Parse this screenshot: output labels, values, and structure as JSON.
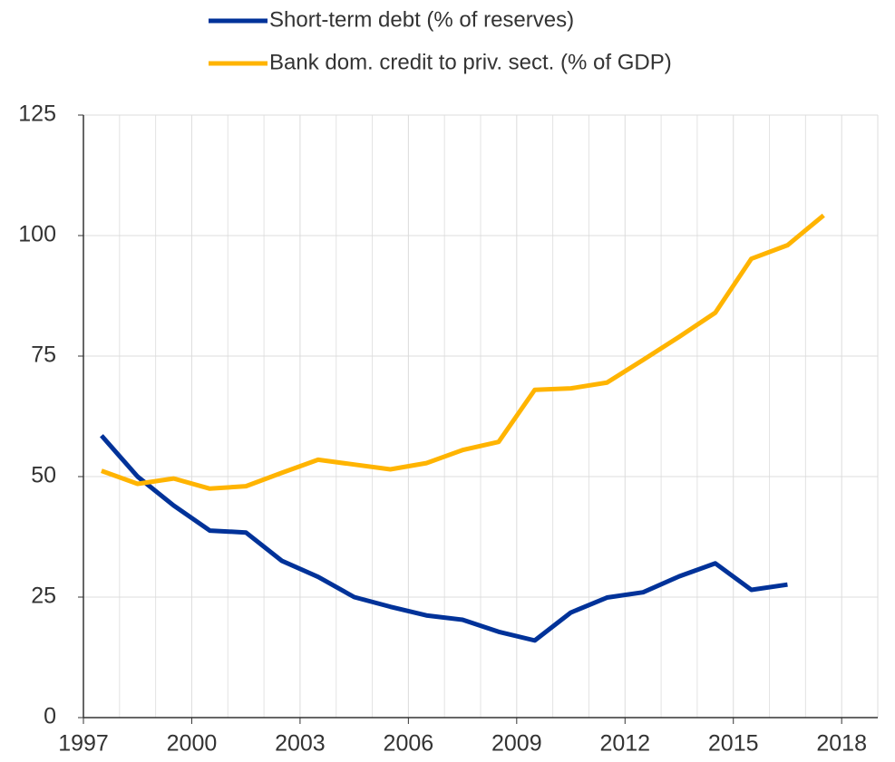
{
  "chart_data": {
    "type": "line",
    "x": [
      1997.5,
      1998.5,
      1999.5,
      2000.5,
      2001.5,
      2002.5,
      2003.5,
      2004.5,
      2005.5,
      2006.5,
      2007.5,
      2008.5,
      2009.5,
      2010.5,
      2011.5,
      2012.5,
      2013.5,
      2014.5,
      2015.5,
      2016.5,
      2017.5
    ],
    "series": [
      {
        "name": "Short-term debt (% of reserves)",
        "color": "#003299",
        "values": [
          58.5,
          50,
          44,
          38.8,
          38.4,
          32.5,
          29.2,
          25,
          23,
          21.2,
          20.3,
          17.8,
          16,
          21.8,
          24.9,
          26,
          29.3,
          32,
          26.5,
          27.6,
          null
        ]
      },
      {
        "name": "Bank dom. credit to priv. sect. (% of GDP)",
        "color": "#ffb400",
        "values": [
          51.2,
          48.5,
          49.6,
          47.5,
          48,
          50.8,
          53.5,
          52.5,
          51.5,
          52.8,
          55.5,
          57.2,
          68,
          68.3,
          69.5,
          74.2,
          79,
          84,
          95.2,
          98,
          104.2
        ]
      }
    ],
    "xlim": [
      1997,
      2019
    ],
    "xticks": [
      1997,
      2000,
      2003,
      2006,
      2009,
      2012,
      2015,
      2018
    ],
    "x_minor_grid": [
      1998,
      1999,
      2001,
      2002,
      2004,
      2005,
      2007,
      2008,
      2010,
      2011,
      2013,
      2014,
      2016,
      2017,
      2019
    ],
    "ylim": [
      0,
      125
    ],
    "yticks": [
      0,
      25,
      50,
      75,
      100,
      125
    ],
    "grid": true,
    "legend": "top"
  }
}
